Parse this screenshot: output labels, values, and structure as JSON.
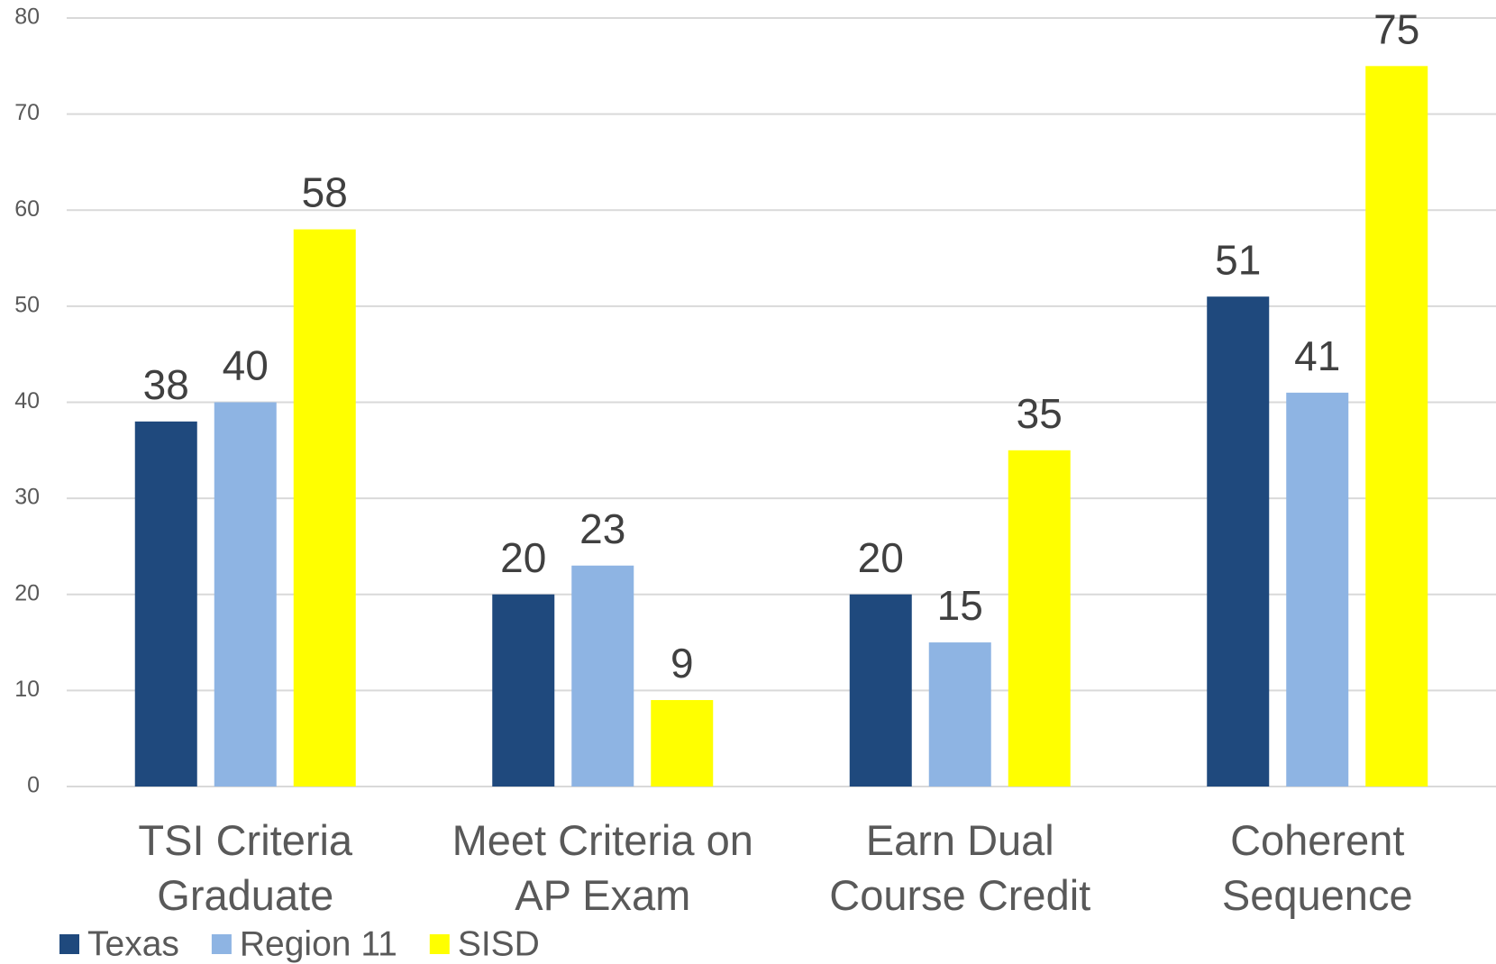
{
  "chart_data": {
    "type": "bar",
    "categories": [
      [
        "TSI Criteria",
        "Graduate"
      ],
      [
        "Meet Criteria on",
        "AP Exam"
      ],
      [
        "Earn Dual",
        "Course Credit"
      ],
      [
        "Coherent",
        "Sequence"
      ]
    ],
    "series": [
      {
        "name": "Texas",
        "color": "#1f497d",
        "values": [
          38,
          20,
          20,
          51
        ]
      },
      {
        "name": "Region 11",
        "color": "#8eb4e3",
        "values": [
          40,
          23,
          15,
          41
        ]
      },
      {
        "name": "SISD",
        "color": "#ffff00",
        "values": [
          58,
          9,
          35,
          75
        ]
      }
    ],
    "ylim": [
      0,
      80
    ],
    "yticks": [
      0,
      10,
      20,
      30,
      40,
      50,
      60,
      70,
      80
    ],
    "grid": true,
    "legend": "bottom-left"
  }
}
